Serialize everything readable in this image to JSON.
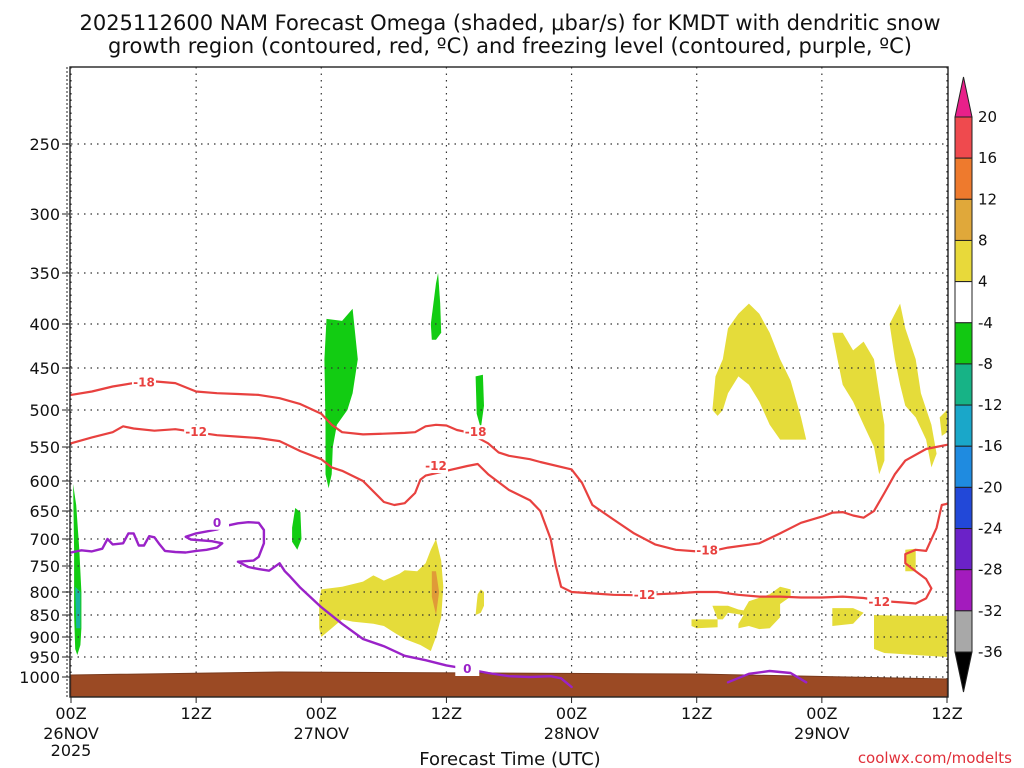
{
  "chart_data": {
    "type": "time-height cross section",
    "title_line1": "2025112600 NAM Forecast Omega (shaded, μbar/s) for KMDT with dendritic snow",
    "title_line2": "growth region (contoured, red, ºC) and freezing level (contoured, purple, ºC)",
    "xlabel": "Forecast Time (UTC)",
    "credit": "coolwx.com/modelts",
    "y_ticks": [
      "250",
      "300",
      "350",
      "400",
      "450",
      "500",
      "550",
      "600",
      "650",
      "700",
      "750",
      "800",
      "850",
      "900",
      "950",
      "1000"
    ],
    "x_ticks": [
      {
        "hour": 0,
        "line1": "00Z",
        "line2": "26NOV",
        "line3": "2025"
      },
      {
        "hour": 12,
        "line1": "12Z",
        "line2": "",
        "line3": ""
      },
      {
        "hour": 24,
        "line1": "00Z",
        "line2": "27NOV",
        "line3": ""
      },
      {
        "hour": 36,
        "line1": "12Z",
        "line2": "",
        "line3": ""
      },
      {
        "hour": 48,
        "line1": "00Z",
        "line2": "28NOV",
        "line3": ""
      },
      {
        "hour": 60,
        "line1": "12Z",
        "line2": "",
        "line3": ""
      },
      {
        "hour": 72,
        "line1": "00Z",
        "line2": "29NOV",
        "line3": ""
      },
      {
        "hour": 84,
        "line1": "12Z",
        "line2": "",
        "line3": ""
      }
    ],
    "x_range_hours": [
      0,
      84
    ],
    "y_range_hPa": [
      190,
      1030
    ],
    "colorbar": {
      "labels": [
        "20",
        "16",
        "12",
        "8",
        "4",
        "-4",
        "-8",
        "-12",
        "-16",
        "-20",
        "-24",
        "-28",
        "-32",
        "-36"
      ],
      "colors": [
        "#e8208a",
        "#ef4a4e",
        "#ee7a2d",
        "#e0a83a",
        "#e8d93a",
        "#ffffff",
        "#12c812",
        "#17b386",
        "#1aa7c9",
        "#1f8be0",
        "#2248d8",
        "#6b22c8",
        "#a31bbd",
        "#a8a8a8",
        "#000000"
      ]
    },
    "contour_labels": {
      "red_minus18": "-18",
      "red_minus12": "-12",
      "purple_zero": "0"
    },
    "red_dgz_upper_minus18": [
      [
        0,
        482
      ],
      [
        2,
        478
      ],
      [
        4,
        472
      ],
      [
        6,
        468
      ],
      [
        7,
        466
      ],
      [
        8,
        466
      ],
      [
        10,
        468
      ],
      [
        12,
        478
      ],
      [
        14,
        480
      ],
      [
        16,
        481
      ],
      [
        18,
        482
      ],
      [
        20,
        486
      ],
      [
        22,
        493
      ],
      [
        24,
        505
      ],
      [
        25,
        520
      ],
      [
        26,
        530
      ],
      [
        28,
        533
      ],
      [
        30,
        532
      ],
      [
        32,
        531
      ],
      [
        33,
        530
      ],
      [
        34,
        522
      ],
      [
        35,
        520
      ],
      [
        36,
        521
      ],
      [
        37,
        527
      ],
      [
        38,
        530
      ],
      [
        40,
        545
      ],
      [
        41,
        558
      ],
      [
        42,
        563
      ],
      [
        44,
        568
      ],
      [
        45,
        572
      ],
      [
        48,
        583
      ],
      [
        49,
        603
      ],
      [
        50,
        640
      ],
      [
        52,
        665
      ],
      [
        54,
        690
      ],
      [
        56,
        710
      ],
      [
        58,
        720
      ],
      [
        60,
        723
      ],
      [
        62,
        720
      ],
      [
        63,
        716
      ],
      [
        66,
        708
      ],
      [
        68,
        690
      ],
      [
        70,
        671
      ],
      [
        72,
        660
      ],
      [
        73,
        653
      ],
      [
        74,
        652
      ],
      [
        75,
        658
      ],
      [
        76,
        662
      ],
      [
        77,
        650
      ],
      [
        78,
        620
      ],
      [
        79,
        590
      ],
      [
        80,
        570
      ],
      [
        82,
        553
      ],
      [
        84,
        547
      ]
    ],
    "red_dgz_lower_minus12": [
      [
        0,
        545
      ],
      [
        2,
        537
      ],
      [
        4,
        530
      ],
      [
        5,
        522
      ],
      [
        6,
        525
      ],
      [
        8,
        528
      ],
      [
        10,
        526
      ],
      [
        12,
        530
      ],
      [
        14,
        534
      ],
      [
        16,
        536
      ],
      [
        18,
        538
      ],
      [
        20,
        542
      ],
      [
        22,
        556
      ],
      [
        24,
        568
      ],
      [
        25,
        580
      ],
      [
        26,
        585
      ],
      [
        28,
        600
      ],
      [
        30,
        635
      ],
      [
        31,
        640
      ],
      [
        32,
        637
      ],
      [
        33,
        620
      ],
      [
        33.5,
        598
      ],
      [
        34,
        592
      ],
      [
        36,
        585
      ],
      [
        38,
        578
      ],
      [
        39,
        575
      ],
      [
        40,
        590
      ],
      [
        42,
        615
      ],
      [
        44,
        632
      ],
      [
        45,
        650
      ],
      [
        46,
        700
      ],
      [
        46.5,
        750
      ],
      [
        47,
        790
      ],
      [
        48,
        800
      ],
      [
        50,
        803
      ],
      [
        52,
        806
      ],
      [
        54,
        807
      ],
      [
        56,
        805
      ],
      [
        58,
        803
      ],
      [
        60,
        800
      ],
      [
        62,
        800
      ],
      [
        64,
        806
      ],
      [
        66,
        810
      ],
      [
        68,
        810
      ],
      [
        70,
        812
      ],
      [
        72,
        812
      ],
      [
        74,
        810
      ],
      [
        76,
        813
      ],
      [
        78,
        820
      ],
      [
        80,
        823
      ],
      [
        81,
        825
      ],
      [
        82,
        814
      ],
      [
        82.5,
        793
      ],
      [
        82,
        775
      ],
      [
        81,
        760
      ],
      [
        80,
        745
      ],
      [
        80,
        728
      ],
      [
        81,
        720
      ],
      [
        82,
        722
      ],
      [
        83,
        680
      ],
      [
        83.5,
        640
      ],
      [
        84,
        638
      ]
    ],
    "purple_freezing_zero": [
      [
        0,
        725
      ],
      [
        1,
        721
      ],
      [
        2,
        723
      ],
      [
        3,
        718
      ],
      [
        3.5,
        700
      ],
      [
        4,
        710
      ],
      [
        5,
        708
      ],
      [
        5.5,
        690
      ],
      [
        6,
        690
      ],
      [
        6.5,
        712
      ],
      [
        7,
        712
      ],
      [
        7.5,
        695
      ],
      [
        8,
        697
      ],
      [
        8.5,
        710
      ],
      [
        9,
        722
      ],
      [
        10,
        724
      ],
      [
        11,
        725
      ],
      [
        12,
        722
      ],
      [
        13,
        720
      ],
      [
        14,
        716
      ],
      [
        14.5,
        708
      ],
      [
        13.5,
        704
      ],
      [
        11.5,
        701
      ],
      [
        11,
        696
      ],
      [
        12,
        690
      ],
      [
        14,
        683
      ],
      [
        15,
        676
      ],
      [
        16,
        672
      ],
      [
        17,
        670
      ],
      [
        18,
        671
      ],
      [
        18.5,
        684
      ],
      [
        18.5,
        708
      ],
      [
        18,
        733
      ],
      [
        17.5,
        740
      ],
      [
        16,
        742
      ],
      [
        17,
        752
      ],
      [
        18,
        756
      ],
      [
        19,
        759
      ],
      [
        20,
        745
      ],
      [
        20.5,
        760
      ],
      [
        21,
        770
      ],
      [
        22,
        792
      ],
      [
        24,
        833
      ],
      [
        26,
        870
      ],
      [
        28,
        905
      ],
      [
        30,
        923
      ],
      [
        32,
        947
      ],
      [
        34,
        958
      ],
      [
        36,
        971
      ],
      [
        38,
        980
      ],
      [
        40,
        990
      ],
      [
        42,
        998
      ],
      [
        44,
        1000
      ],
      [
        46,
        998
      ],
      [
        47,
        1002
      ],
      [
        48,
        1015
      ]
    ],
    "purple_freezing_zero_b": [
      [
        63,
        1008
      ],
      [
        65,
        992
      ],
      [
        67,
        985
      ],
      [
        69,
        990
      ],
      [
        70.5,
        1008
      ]
    ],
    "omega_green_regions": [
      [
        [
          0.2,
          605
        ],
        [
          0.5,
          640
        ],
        [
          0.8,
          720
        ],
        [
          1.0,
          800
        ],
        [
          1.0,
          880
        ],
        [
          0.9,
          920
        ],
        [
          0.6,
          945
        ],
        [
          0.4,
          930
        ],
        [
          0.3,
          850
        ],
        [
          0.3,
          720
        ]
      ],
      [
        [
          21.2,
          680
        ],
        [
          21.5,
          645
        ],
        [
          22.0,
          652
        ],
        [
          22.1,
          700
        ],
        [
          21.7,
          720
        ],
        [
          21.2,
          705
        ]
      ],
      [
        [
          24.3,
          440
        ],
        [
          24.5,
          395
        ],
        [
          26.0,
          397
        ],
        [
          27.0,
          385
        ],
        [
          27.5,
          440
        ],
        [
          27.0,
          480
        ],
        [
          26.5,
          500
        ],
        [
          25.5,
          520
        ],
        [
          25.1,
          550
        ],
        [
          25.0,
          590
        ],
        [
          24.7,
          612
        ],
        [
          24.4,
          590
        ],
        [
          24.4,
          520
        ]
      ],
      [
        [
          34.5,
          400
        ],
        [
          35.0,
          360
        ],
        [
          35.2,
          350
        ],
        [
          35.4,
          380
        ],
        [
          35.5,
          410
        ],
        [
          35.0,
          418
        ],
        [
          34.6,
          418
        ]
      ],
      [
        [
          38.8,
          460
        ],
        [
          39.5,
          458
        ],
        [
          39.6,
          495
        ],
        [
          39.3,
          525
        ],
        [
          38.9,
          505
        ]
      ]
    ],
    "omega_yellow_regions": [
      [
        [
          23.8,
          820
        ],
        [
          24.0,
          795
        ],
        [
          26,
          790
        ],
        [
          28,
          780
        ],
        [
          29,
          768
        ],
        [
          30,
          778
        ],
        [
          31.5,
          765
        ],
        [
          32,
          758
        ],
        [
          33.2,
          760
        ],
        [
          34,
          745
        ],
        [
          34.5,
          720
        ],
        [
          35,
          700
        ],
        [
          35.5,
          740
        ],
        [
          35.7,
          790
        ],
        [
          35.5,
          855
        ],
        [
          35.0,
          900
        ],
        [
          34.5,
          935
        ],
        [
          33.5,
          920
        ],
        [
          32,
          905
        ],
        [
          31,
          890
        ],
        [
          30,
          875
        ],
        [
          29,
          870
        ],
        [
          27,
          865
        ],
        [
          26,
          860
        ],
        [
          25,
          880
        ],
        [
          24,
          900
        ],
        [
          23.8,
          880
        ]
      ],
      [
        [
          38.8,
          850
        ],
        [
          38.9,
          825
        ],
        [
          39.0,
          805
        ],
        [
          39.3,
          795
        ],
        [
          39.6,
          800
        ],
        [
          39.6,
          830
        ],
        [
          39.3,
          845
        ]
      ],
      [
        [
          61.5,
          830
        ],
        [
          62.5,
          830
        ],
        [
          63,
          830
        ],
        [
          64,
          838
        ],
        [
          64.5,
          840
        ],
        [
          65,
          820
        ],
        [
          67,
          805
        ],
        [
          68,
          790
        ],
        [
          69,
          795
        ],
        [
          69,
          810
        ],
        [
          68,
          826
        ],
        [
          68,
          855
        ],
        [
          67,
          880
        ],
        [
          66,
          882
        ],
        [
          65,
          875
        ],
        [
          64,
          880
        ],
        [
          64,
          870
        ],
        [
          64.5,
          850
        ],
        [
          63,
          845
        ],
        [
          62.5,
          860
        ],
        [
          62,
          860
        ]
      ],
      [
        [
          59.5,
          860
        ],
        [
          62,
          860
        ],
        [
          62,
          878
        ],
        [
          60,
          880
        ],
        [
          59.5,
          875
        ]
      ],
      [
        [
          73,
          835
        ],
        [
          75,
          835
        ],
        [
          76,
          845
        ],
        [
          75,
          870
        ],
        [
          73,
          875
        ]
      ],
      [
        [
          77,
          850
        ],
        [
          80,
          852
        ],
        [
          82,
          852
        ],
        [
          84,
          852
        ],
        [
          84,
          950
        ],
        [
          81,
          945
        ],
        [
          78,
          940
        ],
        [
          77,
          930
        ]
      ],
      [
        [
          80,
          720
        ],
        [
          81,
          718
        ],
        [
          81,
          760
        ],
        [
          80,
          760
        ]
      ],
      [
        [
          61.5,
          500
        ],
        [
          61.8,
          460
        ],
        [
          62.5,
          440
        ],
        [
          63,
          405
        ],
        [
          64,
          390
        ],
        [
          65,
          380
        ],
        [
          66,
          390
        ],
        [
          67,
          410
        ],
        [
          68,
          440
        ],
        [
          69,
          465
        ],
        [
          70,
          510
        ],
        [
          70.5,
          540
        ],
        [
          68,
          540
        ],
        [
          67,
          520
        ],
        [
          66,
          490
        ],
        [
          65,
          470
        ],
        [
          64,
          460
        ],
        [
          63,
          480
        ],
        [
          62.5,
          500
        ],
        [
          62,
          508
        ]
      ],
      [
        [
          73,
          410
        ],
        [
          73.5,
          440
        ],
        [
          74,
          470
        ],
        [
          75,
          490
        ],
        [
          76,
          520
        ],
        [
          77,
          550
        ],
        [
          77.5,
          590
        ],
        [
          78,
          570
        ],
        [
          78,
          520
        ],
        [
          77.5,
          480
        ],
        [
          77,
          440
        ],
        [
          76,
          420
        ],
        [
          75,
          430
        ],
        [
          74,
          410
        ]
      ],
      [
        [
          78.5,
          400
        ],
        [
          79.5,
          380
        ],
        [
          80,
          405
        ],
        [
          81,
          440
        ],
        [
          81.5,
          480
        ],
        [
          82.5,
          520
        ],
        [
          83,
          560
        ],
        [
          82.5,
          580
        ],
        [
          82,
          540
        ],
        [
          81,
          510
        ],
        [
          80,
          495
        ],
        [
          79.5,
          470
        ],
        [
          79,
          440
        ]
      ],
      [
        [
          83.3,
          510
        ],
        [
          84,
          500
        ],
        [
          84,
          530
        ],
        [
          83.5,
          535
        ]
      ]
    ],
    "omega_orange_regions": [
      [
        [
          34.6,
          760
        ],
        [
          35.0,
          760
        ],
        [
          35.3,
          800
        ],
        [
          35.0,
          850
        ],
        [
          34.6,
          810
        ]
      ]
    ],
    "ground_color": "#9b4a24"
  }
}
